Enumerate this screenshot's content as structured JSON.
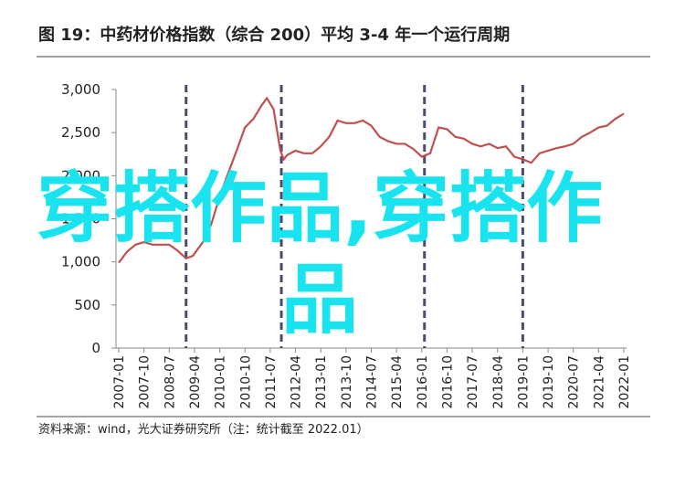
{
  "chart_data": {
    "type": "line",
    "title": "图 19：中药材价格指数（综合 200）平均 3-4 年一个运行周期",
    "source": "资料来源：wind，光大证券研究所（注：统计截至 2022.01）",
    "watermark": "穿搭作品,穿搭作品",
    "x": [
      2007.0,
      2007.25,
      2007.5,
      2007.75,
      2008.0,
      2008.25,
      2008.5,
      2008.75,
      2009.0,
      2009.2,
      2009.5,
      2009.75,
      2010.0,
      2010.25,
      2010.5,
      2010.75,
      2011.0,
      2011.25,
      2011.4,
      2011.6,
      2011.8,
      2011.9,
      2012.0,
      2012.25,
      2012.5,
      2012.75,
      2013.0,
      2013.25,
      2013.5,
      2013.75,
      2014.0,
      2014.25,
      2014.5,
      2014.75,
      2015.0,
      2015.25,
      2015.5,
      2015.75,
      2016.0,
      2016.25,
      2016.5,
      2016.75,
      2017.0,
      2017.25,
      2017.5,
      2017.75,
      2018.0,
      2018.25,
      2018.5,
      2018.75,
      2019.0,
      2019.25,
      2019.5,
      2019.75,
      2020.0,
      2020.25,
      2020.5,
      2020.75,
      2021.0,
      2021.25,
      2021.5,
      2021.75,
      2022.0
    ],
    "series": [
      {
        "color": "#c0504d",
        "values": [
          990,
          1120,
          1200,
          1230,
          1200,
          1200,
          1200,
          1130,
          1040,
          1070,
          1230,
          1440,
          1760,
          2030,
          2290,
          2560,
          2660,
          2820,
          2900,
          2770,
          2290,
          2190,
          2240,
          2290,
          2260,
          2260,
          2340,
          2450,
          2640,
          2610,
          2610,
          2640,
          2580,
          2450,
          2400,
          2370,
          2370,
          2310,
          2220,
          2260,
          2560,
          2540,
          2450,
          2430,
          2370,
          2340,
          2370,
          2320,
          2340,
          2220,
          2190,
          2150,
          2260,
          2290,
          2320,
          2340,
          2370,
          2450,
          2500,
          2560,
          2580,
          2660,
          2720
        ]
      }
    ],
    "cycle_lines": [
      2009.0,
      2011.83,
      2016.08,
      2019.0
    ],
    "xlim": [
      2007,
      2022
    ],
    "xticks": [
      {
        "value": 2007.0,
        "label": "2007-01"
      },
      {
        "value": 2007.75,
        "label": "2007-10"
      },
      {
        "value": 2008.5,
        "label": "2008-07"
      },
      {
        "value": 2009.25,
        "label": "2009-04"
      },
      {
        "value": 2010.0,
        "label": "2010-01"
      },
      {
        "value": 2010.75,
        "label": "2010-10"
      },
      {
        "value": 2011.5,
        "label": "2011-07"
      },
      {
        "value": 2012.25,
        "label": "2012-04"
      },
      {
        "value": 2013.0,
        "label": "2013-01"
      },
      {
        "value": 2013.75,
        "label": "2013-10"
      },
      {
        "value": 2014.5,
        "label": "2014-07"
      },
      {
        "value": 2015.25,
        "label": "2015-04"
      },
      {
        "value": 2016.0,
        "label": "2016-01"
      },
      {
        "value": 2016.75,
        "label": "2016-10"
      },
      {
        "value": 2017.5,
        "label": "2017-07"
      },
      {
        "value": 2018.25,
        "label": "2018-04"
      },
      {
        "value": 2019.0,
        "label": "2019-01"
      },
      {
        "value": 2019.75,
        "label": "2019-10"
      },
      {
        "value": 2020.5,
        "label": "2020-07"
      },
      {
        "value": 2021.25,
        "label": "2021-04"
      },
      {
        "value": 2022.0,
        "label": "2022-01"
      }
    ],
    "ylim": [
      0,
      3000
    ],
    "yticks": [
      0,
      500,
      {
        "value": 1000,
        "label": "1,000"
      },
      {
        "value": 1500,
        "label": "1,500"
      },
      {
        "value": 2000,
        "label": "2,000"
      },
      {
        "value": 2500,
        "label": "2,500"
      },
      {
        "value": 3000,
        "label": "3,000"
      }
    ]
  }
}
